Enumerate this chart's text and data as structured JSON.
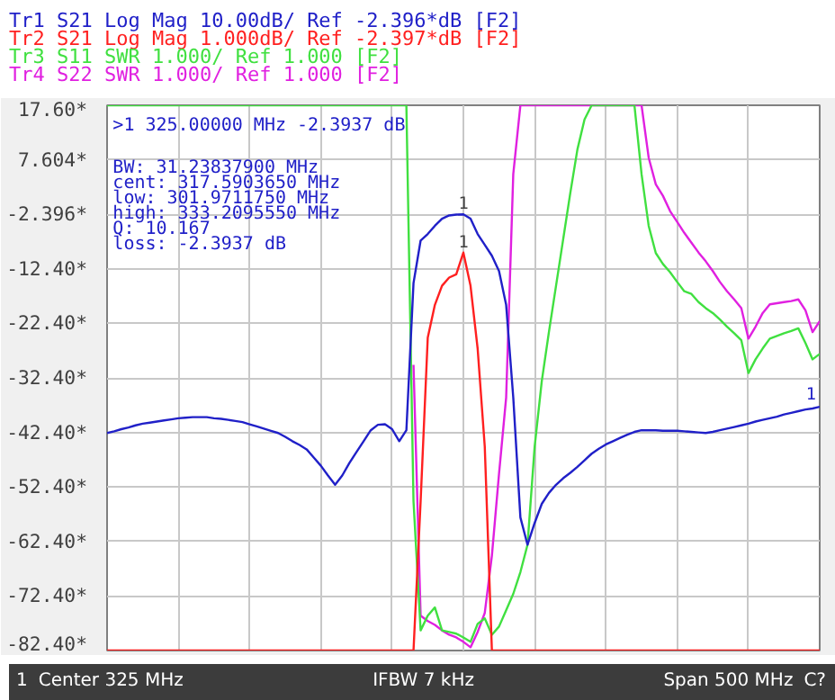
{
  "chart_data": {
    "type": "line",
    "grid": true,
    "tick_labels": "y",
    "categories": [
      null,
      null,
      null,
      null,
      null,
      null,
      null,
      null,
      null,
      null,
      null,
      null,
      null,
      null,
      null,
      null,
      null,
      null,
      null,
      null,
      null,
      null,
      null,
      null,
      null,
      null,
      null,
      null,
      null,
      null,
      null,
      null,
      null,
      null,
      null,
      null,
      null,
      null,
      null,
      null,
      null,
      null,
      null,
      null,
      null,
      null,
      null,
      null,
      null,
      null,
      null,
      null,
      null,
      null,
      null,
      null,
      null,
      null,
      null,
      null,
      null,
      null,
      null,
      null,
      null,
      null,
      null,
      null,
      null,
      null,
      null,
      null,
      null,
      null,
      null,
      null,
      null,
      null,
      null,
      null,
      null,
      null,
      null,
      null,
      null,
      null,
      null,
      null,
      null,
      null,
      null,
      null,
      null,
      null,
      null,
      null,
      null,
      null,
      null,
      null,
      null
    ],
    "ylim": [
      -82.396,
      17.604
    ],
    "yticks": [
      {
        "value": 17.604,
        "label": "17.60*"
      },
      {
        "value": 7.604,
        "label": "7.604*"
      },
      {
        "value": -2.396,
        "label": "-2.396*"
      },
      {
        "value": -12.396,
        "label": "-12.40*"
      },
      {
        "value": -22.396,
        "label": "-22.40*"
      },
      {
        "value": -32.396,
        "label": "-32.40*"
      },
      {
        "value": -42.396,
        "label": "-42.40*"
      },
      {
        "value": -52.396,
        "label": "-52.40*"
      },
      {
        "value": -62.396,
        "label": "-62.40*"
      },
      {
        "value": -72.396,
        "label": "-72.40*"
      },
      {
        "value": -82.396,
        "label": "-82.40*"
      }
    ],
    "series": [
      {
        "name": "Tr1 S21 Log Mag 10.00dB/ Ref -2.396*dB [F2]",
        "color": "#2020c8",
        "values": [
          -42.5,
          -42.2,
          -41.8,
          -41.5,
          -41.1,
          -40.8,
          -40.6,
          -40.4,
          -40.2,
          -40.0,
          -39.8,
          -39.7,
          -39.6,
          -39.6,
          -39.6,
          -39.8,
          -39.9,
          -40.1,
          -40.3,
          -40.5,
          -40.9,
          -41.3,
          -41.7,
          -42.1,
          -42.5,
          -43.2,
          -44,
          -44.7,
          -45.5,
          -47,
          -48.5,
          -50.3,
          -52,
          -50.3,
          -48,
          -46,
          -44,
          -42,
          -41,
          -40.9,
          -41.8,
          -44,
          -42,
          -15,
          -7.2,
          -6,
          -4.5,
          -3.2,
          -2.6,
          -2.45,
          -2.3937,
          -3.2,
          -6,
          -8,
          -10,
          -12.8,
          -19,
          -36,
          -58,
          -63,
          -59,
          -55.5,
          -53.5,
          -52,
          -50.8,
          -49.8,
          -48.7,
          -47.5,
          -46.3,
          -45.4,
          -44.6,
          -44,
          -43.4,
          -42.8,
          -42.3,
          -42,
          -42,
          -42,
          -42.1,
          -42.1,
          -42.1,
          -42.2,
          -42.3,
          -42.4,
          -42.5,
          -42.3,
          -42,
          -41.7,
          -41.4,
          -41.1,
          -40.8,
          -40.4,
          -40.1,
          -39.8,
          -39.5,
          -39.1,
          -38.8,
          -38.5,
          -38.2,
          -38,
          -37.7
        ]
      },
      {
        "name": "Tr2 S21 Log Mag 1.000dB/ Ref -2.397*dB [F2]",
        "color": "#ff2020",
        "values": [
          -82.396,
          -82.396,
          -82.396,
          -82.396,
          -82.396,
          -82.396,
          -82.396,
          -82.396,
          -82.396,
          -82.396,
          -82.396,
          -82.396,
          -82.396,
          -82.396,
          -82.396,
          -82.396,
          -82.396,
          -82.396,
          -82.396,
          -82.396,
          -82.396,
          -82.396,
          -82.396,
          -82.396,
          -82.396,
          -82.396,
          -82.396,
          -82.396,
          -82.396,
          -82.396,
          -82.396,
          -82.396,
          -82.396,
          -82.396,
          -82.396,
          -82.396,
          -82.396,
          -82.396,
          -82.396,
          -82.396,
          -82.396,
          -82.396,
          -82.396,
          -82.396,
          -55,
          -25,
          -19,
          -15.5,
          -14,
          -13.4,
          -9.4,
          -15.5,
          -27,
          -45,
          -82.396,
          -82.396,
          -82.396,
          -82.396,
          -82.396,
          -82.396,
          -82.396,
          -82.396,
          -82.396,
          -82.396,
          -82.396,
          -82.396,
          -82.396,
          -82.396,
          -82.396,
          -82.396,
          -82.396,
          -82.396,
          -82.396,
          -82.396,
          -82.396,
          -82.396,
          -82.396,
          -82.396,
          -82.396,
          -82.396,
          -82.396,
          -82.396,
          -82.396,
          -82.396,
          -82.396,
          -82.396,
          -82.396,
          -82.396,
          -82.396,
          -82.396,
          -82.396,
          -82.396,
          -82.396,
          -82.396,
          -82.396,
          -82.396,
          -82.396,
          -82.396,
          -82.396,
          -82.396,
          -82.396
        ]
      },
      {
        "name": "Tr3 S11 SWR 1.000/ Ref 1.000 [F2]",
        "color": "#40e040",
        "values": [
          17.604,
          17.604,
          17.604,
          17.604,
          17.604,
          17.604,
          17.604,
          17.604,
          17.604,
          17.604,
          17.604,
          17.604,
          17.604,
          17.604,
          17.604,
          17.604,
          17.604,
          17.604,
          17.604,
          17.604,
          17.604,
          17.604,
          17.604,
          17.604,
          17.604,
          17.604,
          17.604,
          17.604,
          17.604,
          17.604,
          17.604,
          17.604,
          17.604,
          17.604,
          17.604,
          17.604,
          17.604,
          17.604,
          17.604,
          17.604,
          17.604,
          17.604,
          17.604,
          -55,
          -78.7,
          -76,
          -74.5,
          -78.7,
          -79,
          -79.3,
          -80,
          -80.8,
          -77.5,
          -76.5,
          -79.5,
          -78,
          -75,
          -72,
          -68,
          -63,
          -45,
          -33,
          -24,
          -15.5,
          -7,
          1.5,
          9.5,
          15,
          17.604,
          17.604,
          17.604,
          17.604,
          17.604,
          17.604,
          17.604,
          5,
          -4.5,
          -9.5,
          -11.5,
          -13,
          -14.8,
          -16.5,
          -17,
          -18.5,
          -19.6,
          -20.5,
          -21.7,
          -23,
          -24.2,
          -25.5,
          -31.5,
          -29,
          -27,
          -25.2,
          -24.7,
          -24.2,
          -23.8,
          -23.3,
          -26,
          -29,
          -28
        ]
      },
      {
        "name": "Tr4 S22 SWR 1.000/ Ref 1.000 [F2]",
        "color": "#e020e0",
        "values": [
          null,
          null,
          null,
          null,
          null,
          null,
          null,
          null,
          null,
          null,
          null,
          null,
          null,
          null,
          null,
          null,
          null,
          null,
          null,
          null,
          null,
          null,
          null,
          null,
          null,
          null,
          null,
          null,
          null,
          null,
          null,
          null,
          null,
          null,
          null,
          null,
          null,
          null,
          null,
          null,
          null,
          null,
          null,
          -30,
          -76,
          -77,
          -77.7,
          -78.7,
          -79.5,
          -80,
          -80.8,
          -81.8,
          -79,
          -75.5,
          -65,
          -50,
          -36,
          5,
          17.604,
          17.604,
          17.604,
          17.604,
          17.604,
          17.604,
          17.604,
          17.604,
          17.604,
          17.604,
          17.604,
          17.604,
          17.604,
          17.604,
          17.604,
          17.604,
          17.604,
          17.604,
          8,
          3.1,
          1,
          -1.8,
          -3.8,
          -5.8,
          -7.6,
          -9.4,
          -11,
          -12.8,
          -14.8,
          -16.5,
          -18,
          -19.6,
          -25.2,
          -23,
          -20.5,
          -18.9,
          -18.7,
          -18.5,
          -18.3,
          -18,
          -20,
          -24,
          -22
        ]
      }
    ],
    "annotations": [
      ">1  325.00000 MHz -2.3937 dB",
      "  BW:  31.23837900 MHz",
      "cent:  317.5903650 MHz",
      " low:  301.9711750 MHz",
      "high:  333.2095550 MHz",
      "   Q:  10.167",
      "loss: -2.3937 dB",
      {
        "text": "1",
        "y": -2.3937
      },
      {
        "text": "1",
        "y": -9.4
      },
      "1",
      "1",
      "Center 325 MHz",
      "IFBW 7 kHz",
      "Span 500 MHz",
      "C?"
    ]
  }
}
